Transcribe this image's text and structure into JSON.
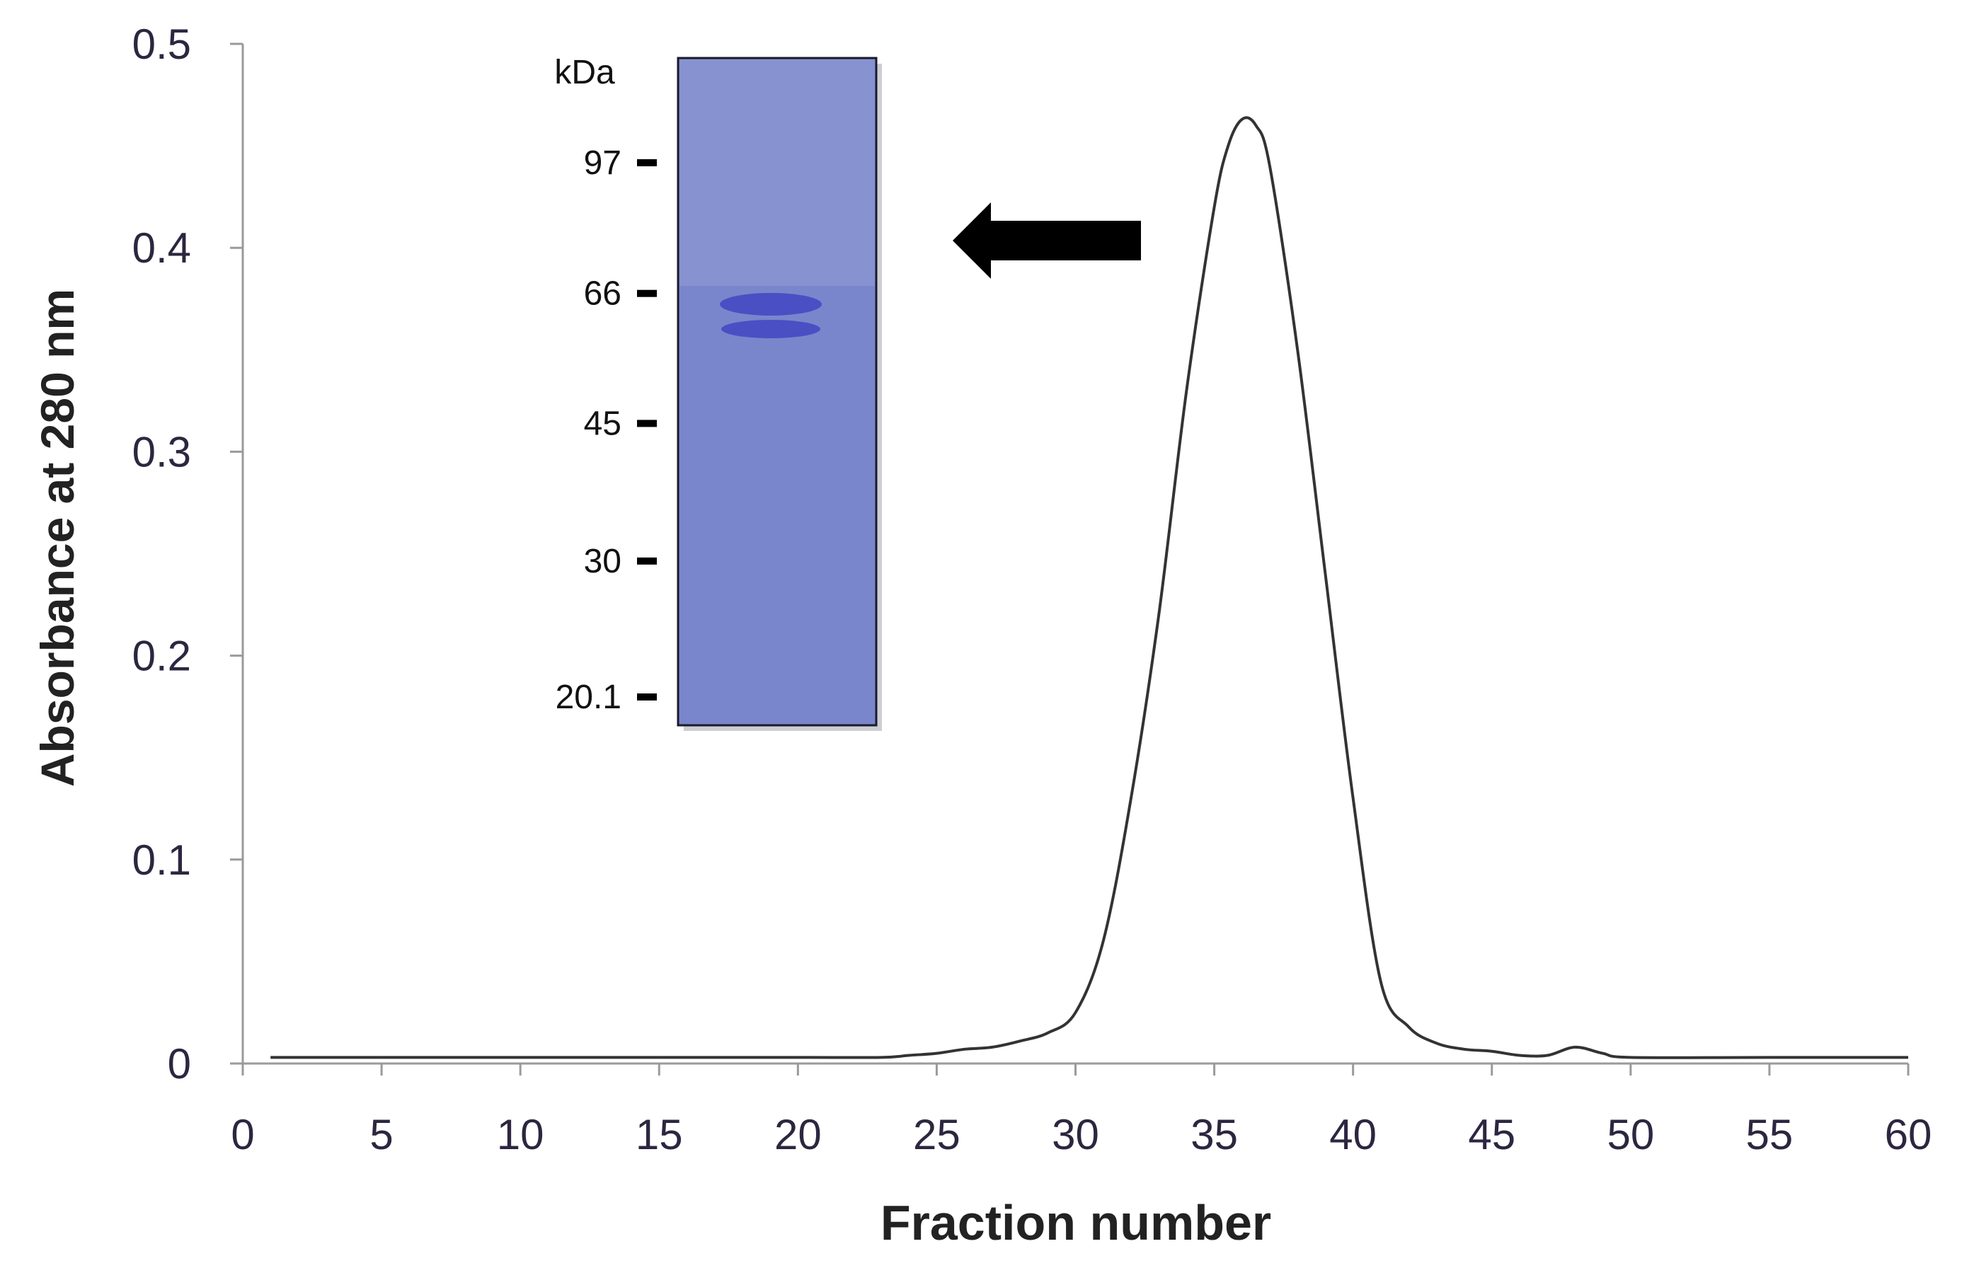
{
  "chart_data": {
    "type": "line",
    "title": "",
    "xlabel": "Fraction number",
    "ylabel": "Absorbance at 280 nm",
    "xlim": [
      0,
      60
    ],
    "ylim": [
      0,
      0.5
    ],
    "x_ticks": [
      "0",
      "5",
      "10",
      "15",
      "20",
      "25",
      "30",
      "35",
      "40",
      "45",
      "50",
      "55",
      "60"
    ],
    "y_ticks": [
      "0",
      "0.1",
      "0.2",
      "0.3",
      "0.4",
      "0.5"
    ],
    "grid": false,
    "legend": "none",
    "line_color": "#333333",
    "series": [
      {
        "x": [
          1,
          5,
          10,
          15,
          20,
          23,
          24,
          25,
          26,
          27,
          28,
          29,
          30,
          31,
          32,
          33,
          34,
          35,
          35.5,
          36,
          36.5,
          37,
          38,
          39,
          40,
          41,
          42,
          43,
          44,
          45,
          46,
          47,
          48,
          49,
          50,
          55,
          60
        ],
        "y": [
          0.003,
          0.003,
          0.003,
          0.003,
          0.003,
          0.003,
          0.004,
          0.005,
          0.007,
          0.008,
          0.011,
          0.015,
          0.025,
          0.06,
          0.13,
          0.22,
          0.33,
          0.42,
          0.45,
          0.463,
          0.46,
          0.44,
          0.35,
          0.24,
          0.13,
          0.04,
          0.018,
          0.01,
          0.007,
          0.006,
          0.004,
          0.004,
          0.008,
          0.005,
          0.003,
          0.003,
          0.003
        ]
      }
    ]
  },
  "inset_gel": {
    "unit_label": "kDa",
    "markers": [
      "97",
      "66",
      "45",
      "30",
      "20.1"
    ],
    "marker_values": [
      97,
      66,
      45,
      30,
      20.1
    ],
    "lane_color": "#7a86cc",
    "band_color": "#4a4fc4",
    "arrow_color": "#000000"
  }
}
